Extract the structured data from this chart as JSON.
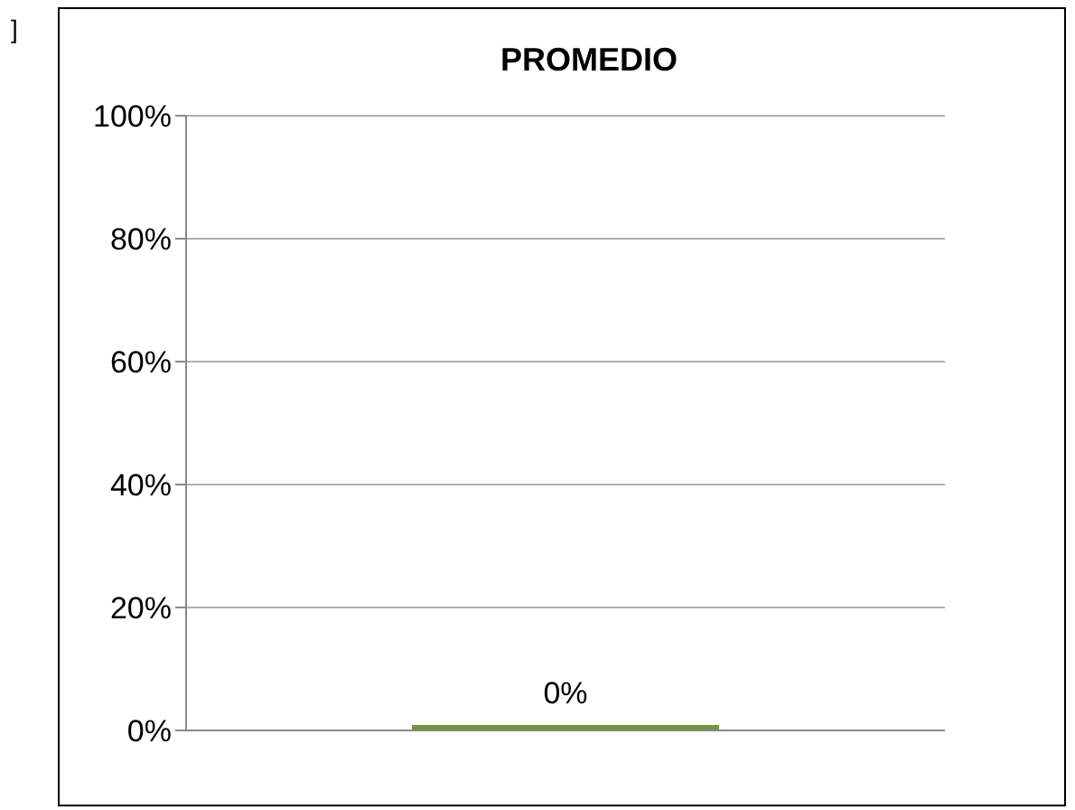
{
  "chart_data": {
    "type": "bar",
    "title": "PROMEDIO",
    "categories": [
      null
    ],
    "values": [
      0
    ],
    "color": "#77933c",
    "value_labels": [
      "0%"
    ],
    "ylim": [
      0,
      100
    ],
    "yticks": [
      {
        "value": 0,
        "label": "0%"
      },
      {
        "value": 20,
        "label": "20%"
      },
      {
        "value": 40,
        "label": "40%"
      },
      {
        "value": 60,
        "label": "60%"
      },
      {
        "value": 80,
        "label": "80%"
      },
      {
        "value": 100,
        "label": "100%"
      }
    ],
    "grid": "y",
    "annotations": [
      "]"
    ]
  }
}
